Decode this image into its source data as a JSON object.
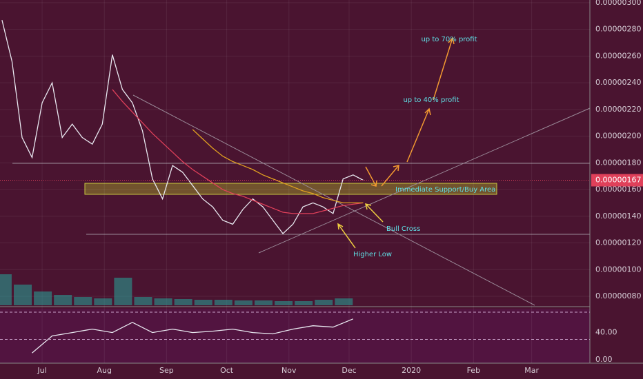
{
  "chart_data": [
    {
      "type": "line",
      "x": [
        -20,
        -15,
        -10,
        -5,
        0,
        5,
        10,
        15,
        20,
        25,
        30,
        35,
        40,
        45,
        50,
        55,
        60,
        65,
        70,
        75,
        80,
        85,
        90,
        95,
        100,
        105,
        110,
        115,
        120,
        125,
        130,
        135,
        140,
        145,
        150,
        155,
        160
      ],
      "series": [
        {
          "color": "#e8e8f0",
          "values": [
            2.87e-06,
            2.56e-06,
            1.99e-06,
            1.84e-06,
            2.25e-06,
            2.4e-06,
            1.99e-06,
            2.09e-06,
            1.99e-06,
            1.94e-06,
            2.09e-06,
            2.61e-06,
            2.35e-06,
            2.25e-06,
            2.04e-06,
            1.68e-06,
            1.53e-06,
            1.78e-06,
            1.73e-06,
            1.63e-06,
            1.53e-06,
            1.47e-06,
            1.37e-06,
            1.34e-06,
            1.45e-06,
            1.53e-06,
            1.47e-06,
            1.37e-06,
            1.27e-06,
            1.34e-06,
            1.47e-06,
            1.5e-06,
            1.47e-06,
            1.42e-06,
            1.68e-06,
            1.71e-06,
            1.67e-06
          ]
        },
        {
          "color": "#e0405a",
          "values": [
            null,
            null,
            null,
            null,
            null,
            null,
            null,
            null,
            null,
            null,
            null,
            2.35e-06,
            2.26e-06,
            2.18e-06,
            2.1e-06,
            2.02e-06,
            1.95e-06,
            1.88e-06,
            1.81e-06,
            1.75e-06,
            1.7e-06,
            1.65e-06,
            1.6e-06,
            1.57e-06,
            1.55e-06,
            1.52e-06,
            1.49e-06,
            1.46e-06,
            1.43e-06,
            1.42e-06,
            1.42e-06,
            1.42e-06,
            1.44e-06,
            1.46e-06,
            1.48e-06,
            1.49e-06,
            1.5e-06
          ]
        },
        {
          "color": "#e0a020",
          "values": [
            null,
            null,
            null,
            null,
            null,
            null,
            null,
            null,
            null,
            null,
            null,
            null,
            null,
            null,
            null,
            null,
            null,
            null,
            null,
            2.05e-06,
            1.98e-06,
            1.91e-06,
            1.85e-06,
            1.81e-06,
            1.78e-06,
            1.75e-06,
            1.71e-06,
            1.68e-06,
            1.65e-06,
            1.62e-06,
            1.59e-06,
            1.57e-06,
            1.54e-06,
            1.52e-06,
            1.5e-06,
            1.5e-06,
            1.5e-06
          ]
        }
      ],
      "xlim": [
        -21,
        273
      ],
      "xticks": [
        {
          "value": 0,
          "label": "Jul"
        },
        {
          "value": 31,
          "label": "Aug"
        },
        {
          "value": 62,
          "label": "Sep"
        },
        {
          "value": 92,
          "label": "Oct"
        },
        {
          "value": 123,
          "label": "Nov"
        },
        {
          "value": 153,
          "label": "Dec"
        },
        {
          "value": 184,
          "label": "2020"
        },
        {
          "value": 215,
          "label": "Feb"
        },
        {
          "value": 244,
          "label": "Mar"
        }
      ],
      "ylim": [
        7.33e-07,
        3.02e-06
      ],
      "yticks": [
        {
          "value": 3e-06,
          "label": "0.00000300"
        },
        {
          "value": 2.8e-06,
          "label": "0.00000280"
        },
        {
          "value": 2.6e-06,
          "label": "0.00000260"
        },
        {
          "value": 2.4e-06,
          "label": "0.00000240"
        },
        {
          "value": 2.2e-06,
          "label": "0.00000220"
        },
        {
          "value": 2e-06,
          "label": "0.00000200"
        },
        {
          "value": 1.8e-06,
          "label": "0.00000180"
        },
        {
          "value": 1.6e-06,
          "label": "0.00000160"
        },
        {
          "value": 1.4e-06,
          "label": "0.00000140"
        },
        {
          "value": 1.2e-06,
          "label": "0.00000120"
        },
        {
          "value": 1e-06,
          "label": "0.00000100"
        },
        {
          "value": 8e-07,
          "label": "0.00000080"
        }
      ],
      "last_value": {
        "value": 1.67e-06,
        "label": "0.00000167"
      },
      "annotations": [
        "up to 70% profit",
        "up to 40% profit",
        "Immediate Support/Buy Area",
        "Bull Cross",
        "Higher Low"
      ]
    },
    {
      "type": "bar",
      "color": "#26a69a",
      "x": [
        -20,
        -10,
        0,
        10,
        20,
        30,
        40,
        50,
        60,
        70,
        80,
        90,
        100,
        110,
        120,
        130,
        140,
        150
      ],
      "values": [
        45,
        30,
        20,
        15,
        12,
        10,
        40,
        12,
        10,
        9,
        8,
        8,
        7,
        7,
        6,
        6,
        8,
        10
      ],
      "xlim": [
        -21,
        273
      ],
      "ylim": [
        0,
        100
      ]
    },
    {
      "type": "line",
      "color": "#e8e8f0",
      "x": [
        -5,
        5,
        15,
        25,
        35,
        45,
        55,
        65,
        75,
        85,
        95,
        105,
        115,
        125,
        135,
        145,
        155
      ],
      "values": [
        10,
        35,
        40,
        45,
        40,
        55,
        40,
        45,
        40,
        42,
        45,
        40,
        38,
        45,
        50,
        48,
        60
      ],
      "xlim": [
        -21,
        273
      ],
      "ylim": [
        -5,
        75
      ],
      "yticks": [
        {
          "value": 40,
          "label": "40.00"
        },
        {
          "value": 0,
          "label": "0.00"
        }
      ],
      "bands": [
        70,
        30
      ]
    }
  ]
}
